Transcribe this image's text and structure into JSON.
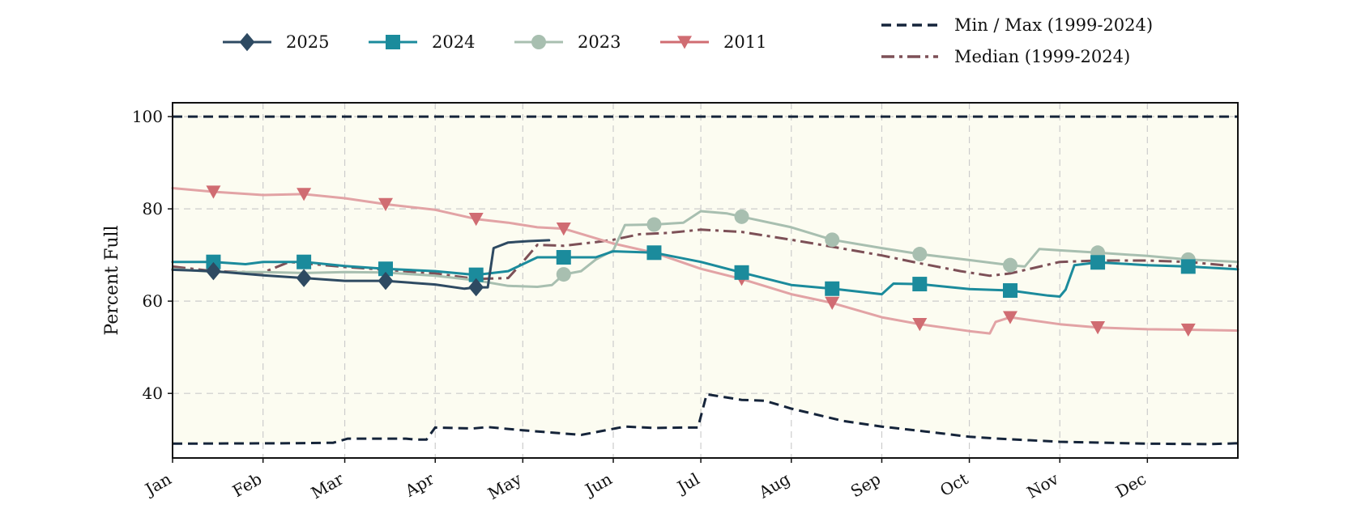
{
  "chart_data": {
    "type": "line",
    "title": "",
    "xlabel": "",
    "ylabel": "Percent Full",
    "xlim": [
      0,
      365
    ],
    "ylim": [
      26,
      103
    ],
    "yticks": [
      40,
      60,
      80,
      100
    ],
    "grid": true,
    "background_color": "#fcfcf1",
    "legend_position": "top",
    "months": [
      {
        "label": "Jan",
        "day": 0
      },
      {
        "label": "Feb",
        "day": 31
      },
      {
        "label": "Mar",
        "day": 59
      },
      {
        "label": "Apr",
        "day": 90
      },
      {
        "label": "May",
        "day": 120
      },
      {
        "label": "Jun",
        "day": 151
      },
      {
        "label": "Jul",
        "day": 181
      },
      {
        "label": "Aug",
        "day": 212
      },
      {
        "label": "Sep",
        "day": 243
      },
      {
        "label": "Oct",
        "day": 273
      },
      {
        "label": "Nov",
        "day": 304
      },
      {
        "label": "Dec",
        "day": 334
      }
    ],
    "band_upper": [
      [
        0,
        100
      ],
      [
        365,
        100
      ]
    ],
    "band_lower": [
      [
        0,
        29.1
      ],
      [
        40,
        29.2
      ],
      [
        55,
        29.3
      ],
      [
        60,
        30.2
      ],
      [
        80,
        30.2
      ],
      [
        83,
        30.0
      ],
      [
        87,
        30.0
      ],
      [
        90,
        32.6
      ],
      [
        103,
        32.4
      ],
      [
        108,
        32.7
      ],
      [
        120,
        32.0
      ],
      [
        130,
        31.5
      ],
      [
        140,
        31.0
      ],
      [
        155,
        32.8
      ],
      [
        165,
        32.5
      ],
      [
        175,
        32.6
      ],
      [
        180,
        32.6
      ],
      [
        183,
        39.8
      ],
      [
        195,
        38.6
      ],
      [
        203,
        38.4
      ],
      [
        212,
        36.7
      ],
      [
        230,
        34.0
      ],
      [
        243,
        32.8
      ],
      [
        260,
        31.6
      ],
      [
        273,
        30.6
      ],
      [
        283,
        30.2
      ],
      [
        304,
        29.5
      ],
      [
        334,
        29.1
      ],
      [
        355,
        29.0
      ],
      [
        365,
        29.2
      ]
    ],
    "series": [
      {
        "name": "2025",
        "color": "#2e4a62",
        "marker": "diamond",
        "dash": "",
        "points": [
          [
            0,
            66.8
          ],
          [
            14,
            66.5
          ],
          [
            31,
            65.6
          ],
          [
            45,
            65.0
          ],
          [
            59,
            64.4
          ],
          [
            73,
            64.4
          ],
          [
            90,
            63.6
          ],
          [
            100,
            62.7
          ],
          [
            104,
            63.0
          ],
          [
            108,
            63.0
          ],
          [
            110,
            71.5
          ],
          [
            115,
            72.7
          ],
          [
            122,
            73.0
          ],
          [
            129,
            73.2
          ]
        ],
        "markers": [
          [
            14,
            66.5
          ],
          [
            45,
            65.0
          ],
          [
            73,
            64.4
          ],
          [
            104,
            63.0
          ]
        ]
      },
      {
        "name": "2024",
        "color": "#1b8b9c",
        "marker": "square",
        "dash": "",
        "points": [
          [
            0,
            68.5
          ],
          [
            14,
            68.5
          ],
          [
            25,
            68.0
          ],
          [
            31,
            68.5
          ],
          [
            45,
            68.5
          ],
          [
            59,
            67.6
          ],
          [
            73,
            67.0
          ],
          [
            90,
            66.5
          ],
          [
            104,
            65.7
          ],
          [
            115,
            66.5
          ],
          [
            125,
            69.5
          ],
          [
            134,
            69.5
          ],
          [
            145,
            69.5
          ],
          [
            151,
            70.8
          ],
          [
            165,
            70.5
          ],
          [
            181,
            68.5
          ],
          [
            195,
            66.2
          ],
          [
            212,
            63.5
          ],
          [
            226,
            62.7
          ],
          [
            243,
            61.5
          ],
          [
            247,
            63.8
          ],
          [
            256,
            63.7
          ],
          [
            273,
            62.6
          ],
          [
            287,
            62.3
          ],
          [
            300,
            61.2
          ],
          [
            304,
            61.0
          ],
          [
            306,
            62.5
          ],
          [
            309,
            67.8
          ],
          [
            317,
            68.4
          ],
          [
            334,
            67.8
          ],
          [
            348,
            67.5
          ],
          [
            365,
            66.9
          ]
        ],
        "markers": [
          [
            14,
            68.5
          ],
          [
            45,
            68.5
          ],
          [
            73,
            67.0
          ],
          [
            104,
            65.7
          ],
          [
            134,
            69.5
          ],
          [
            165,
            70.5
          ],
          [
            195,
            66.2
          ],
          [
            226,
            62.7
          ],
          [
            256,
            63.7
          ],
          [
            287,
            62.3
          ],
          [
            317,
            68.4
          ],
          [
            348,
            67.5
          ]
        ]
      },
      {
        "name": "2023",
        "color": "#a8bfb0",
        "marker": "circle",
        "dash": "",
        "points": [
          [
            0,
            67.0
          ],
          [
            14,
            66.3
          ],
          [
            31,
            66.3
          ],
          [
            45,
            66.1
          ],
          [
            59,
            66.3
          ],
          [
            73,
            66.2
          ],
          [
            90,
            65.5
          ],
          [
            104,
            64.5
          ],
          [
            115,
            63.3
          ],
          [
            125,
            63.1
          ],
          [
            130,
            63.5
          ],
          [
            134,
            65.8
          ],
          [
            140,
            66.5
          ],
          [
            145,
            69.0
          ],
          [
            151,
            71.0
          ],
          [
            155,
            76.5
          ],
          [
            165,
            76.6
          ],
          [
            175,
            77.0
          ],
          [
            181,
            79.5
          ],
          [
            190,
            79.0
          ],
          [
            195,
            78.3
          ],
          [
            212,
            76.0
          ],
          [
            226,
            73.3
          ],
          [
            243,
            71.5
          ],
          [
            256,
            70.2
          ],
          [
            273,
            68.9
          ],
          [
            287,
            67.8
          ],
          [
            292,
            67.5
          ],
          [
            297,
            71.3
          ],
          [
            304,
            71.0
          ],
          [
            317,
            70.5
          ],
          [
            334,
            69.8
          ],
          [
            348,
            69.0
          ],
          [
            365,
            68.5
          ]
        ],
        "markers": [
          [
            134,
            65.8
          ],
          [
            165,
            76.6
          ],
          [
            195,
            78.3
          ],
          [
            226,
            73.3
          ],
          [
            256,
            70.2
          ],
          [
            287,
            67.8
          ],
          [
            317,
            70.5
          ],
          [
            348,
            69.0
          ]
        ]
      },
      {
        "name": "2011",
        "color": "#d06c72",
        "line_color": "#e2a3a5",
        "marker": "triangle-down",
        "dash": "",
        "points": [
          [
            0,
            84.5
          ],
          [
            14,
            83.7
          ],
          [
            31,
            83.0
          ],
          [
            45,
            83.2
          ],
          [
            59,
            82.3
          ],
          [
            73,
            81.0
          ],
          [
            90,
            79.8
          ],
          [
            104,
            77.8
          ],
          [
            115,
            77.0
          ],
          [
            125,
            76.0
          ],
          [
            134,
            75.7
          ],
          [
            151,
            72.5
          ],
          [
            165,
            70.5
          ],
          [
            181,
            67.0
          ],
          [
            195,
            64.8
          ],
          [
            212,
            61.5
          ],
          [
            226,
            59.6
          ],
          [
            243,
            56.5
          ],
          [
            256,
            55.0
          ],
          [
            273,
            53.5
          ],
          [
            280,
            53.0
          ],
          [
            282,
            55.5
          ],
          [
            287,
            56.5
          ],
          [
            304,
            55.0
          ],
          [
            317,
            54.3
          ],
          [
            334,
            53.9
          ],
          [
            348,
            53.8
          ],
          [
            365,
            53.6
          ]
        ],
        "markers": [
          [
            14,
            83.7
          ],
          [
            45,
            83.2
          ],
          [
            73,
            81.0
          ],
          [
            104,
            77.8
          ],
          [
            134,
            75.7
          ],
          [
            165,
            70.5
          ],
          [
            195,
            64.8
          ],
          [
            226,
            59.6
          ],
          [
            256,
            55.0
          ],
          [
            287,
            56.5
          ],
          [
            317,
            54.3
          ],
          [
            348,
            53.8
          ]
        ]
      },
      {
        "name": "Median (1999-2024)",
        "color": "#7d5057",
        "marker": "",
        "dash": "dashdot",
        "points": [
          [
            0,
            67.5
          ],
          [
            14,
            66.5
          ],
          [
            31,
            66.2
          ],
          [
            40,
            68.5
          ],
          [
            59,
            67.4
          ],
          [
            73,
            66.8
          ],
          [
            90,
            66.0
          ],
          [
            104,
            64.8
          ],
          [
            115,
            65.0
          ],
          [
            120,
            68.5
          ],
          [
            125,
            72.2
          ],
          [
            134,
            72.0
          ],
          [
            145,
            72.8
          ],
          [
            151,
            73.3
          ],
          [
            160,
            74.5
          ],
          [
            170,
            74.8
          ],
          [
            181,
            75.5
          ],
          [
            195,
            75.0
          ],
          [
            212,
            73.3
          ],
          [
            226,
            71.8
          ],
          [
            243,
            69.9
          ],
          [
            256,
            68.2
          ],
          [
            270,
            66.5
          ],
          [
            280,
            65.5
          ],
          [
            287,
            66.0
          ],
          [
            304,
            68.5
          ],
          [
            317,
            68.8
          ],
          [
            334,
            68.8
          ],
          [
            348,
            68.5
          ],
          [
            365,
            67.5
          ]
        ],
        "markers": []
      }
    ],
    "legend": {
      "items": [
        {
          "label": "2025",
          "color": "#2e4a62",
          "marker": "diamond",
          "dash": ""
        },
        {
          "label": "2024",
          "color": "#1b8b9c",
          "marker": "square",
          "dash": ""
        },
        {
          "label": "2023",
          "color": "#a8bfb0",
          "marker": "circle",
          "dash": ""
        },
        {
          "label": "2011",
          "color": "#d06c72",
          "marker": "triangle-down",
          "dash": ""
        }
      ],
      "reference_items": [
        {
          "label": "Min / Max (1999-2024)",
          "color": "#15243a",
          "dash": "dashed"
        },
        {
          "label": "Median (1999-2024)",
          "color": "#7d5057",
          "dash": "dashdot"
        }
      ]
    }
  }
}
